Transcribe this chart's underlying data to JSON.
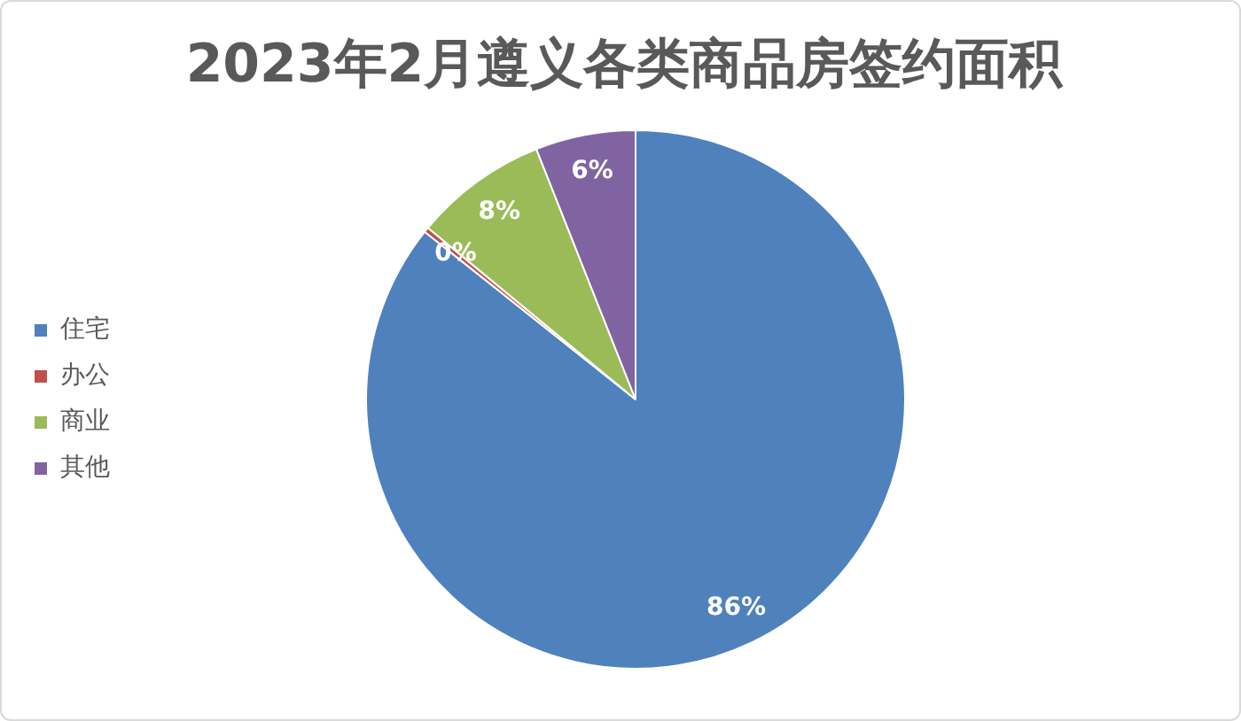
{
  "chart_data": {
    "type": "pie",
    "title": "2023年2月遵义各类商品房签约面积",
    "categories": [
      "住宅",
      "办公",
      "商业",
      "其他"
    ],
    "values": [
      85.7,
      0.3,
      8,
      6
    ],
    "colors": [
      "#4f81bd",
      "#c0504d",
      "#9bbb59",
      "#8064a2"
    ],
    "value_labels": [
      "86%",
      "0%",
      "8%",
      "6%"
    ],
    "legend": "left"
  }
}
